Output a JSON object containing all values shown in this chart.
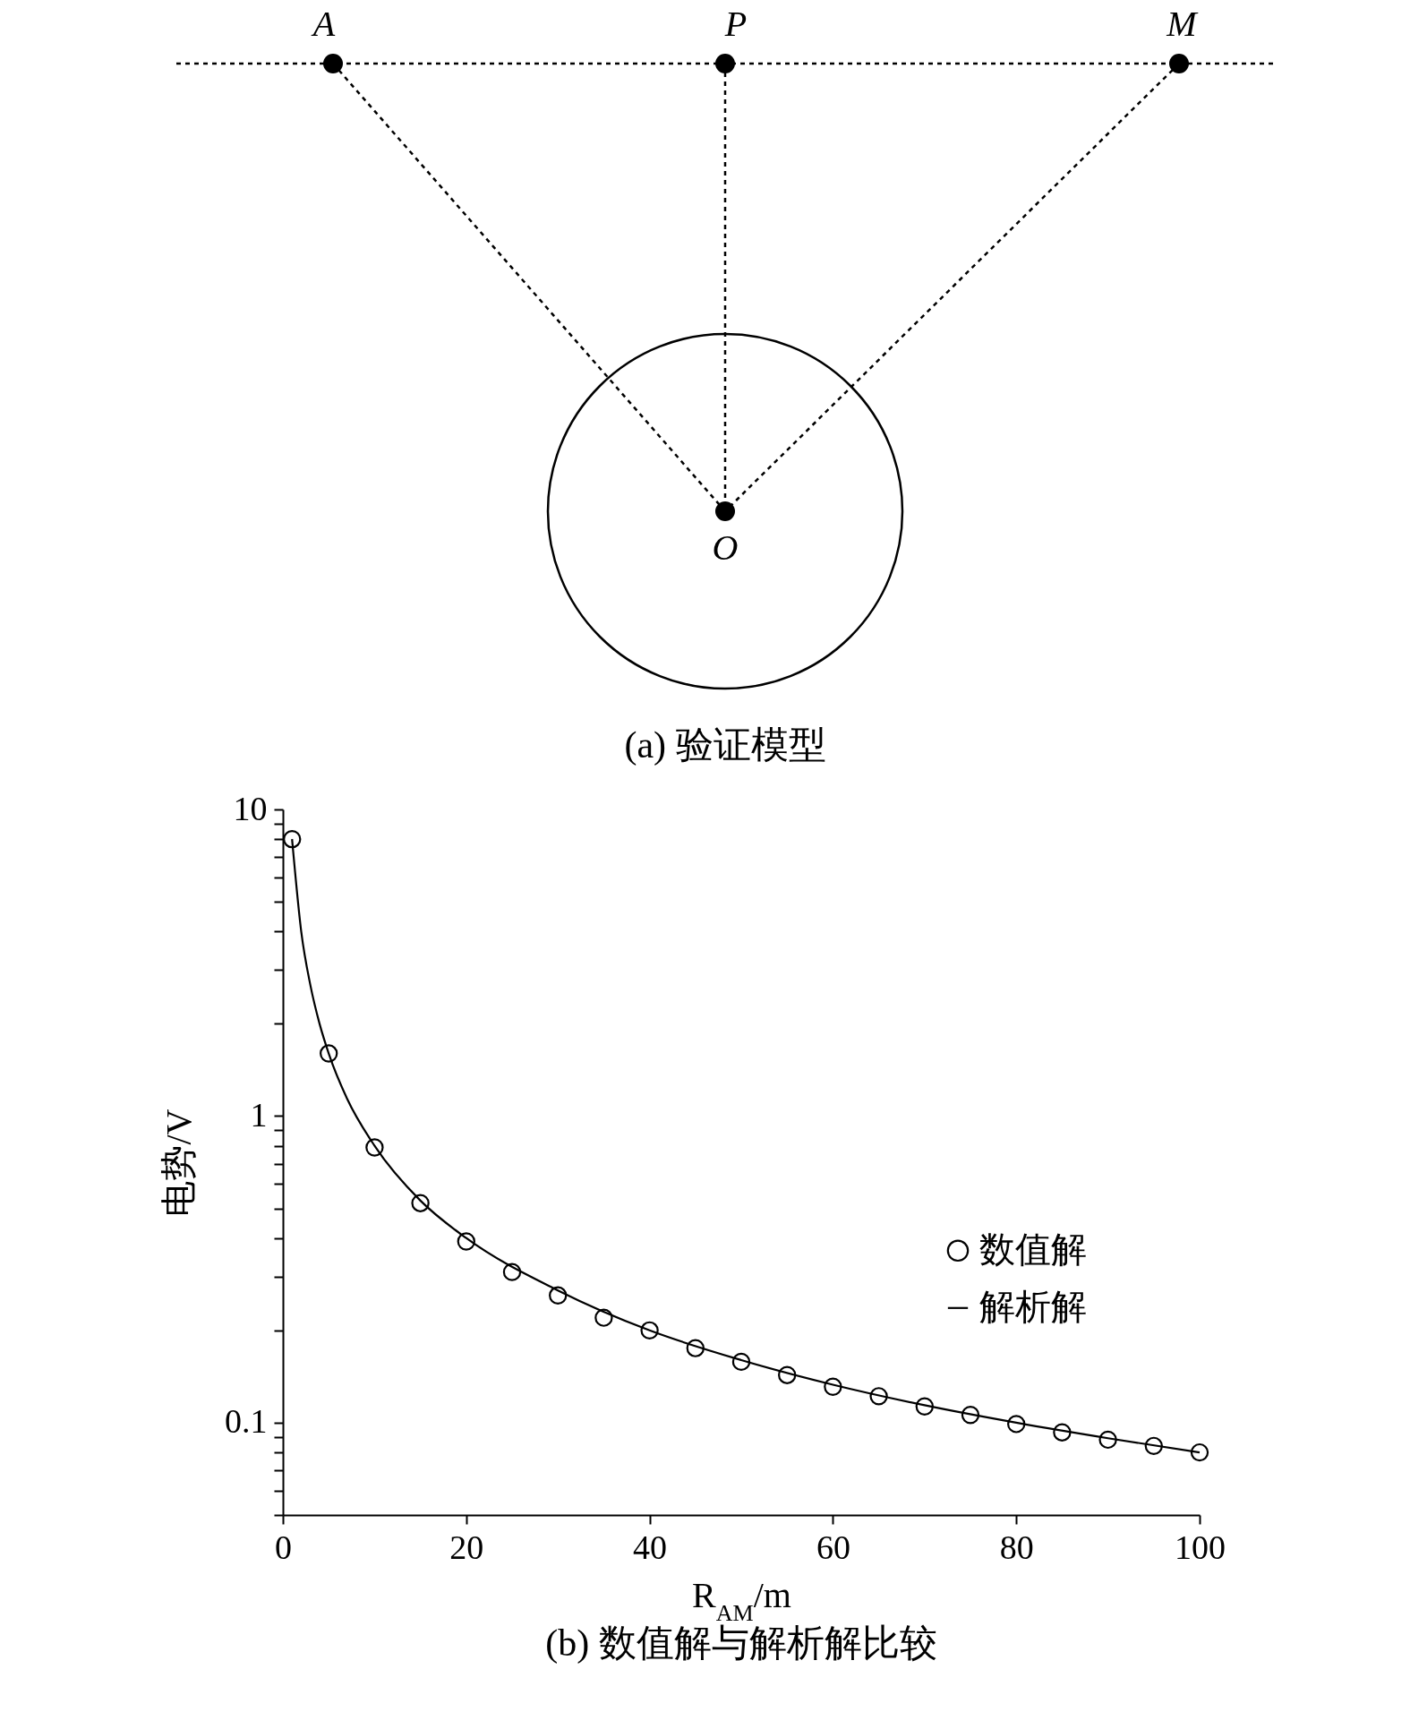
{
  "chart_data": [
    {
      "type": "other",
      "title": "(a) 验证模型",
      "annotations": [
        "A",
        "P",
        "M",
        "O"
      ]
    },
    {
      "type": "line",
      "title": "(b) 数值解与解析解比较",
      "xlabel": "R$_{AM}$/m",
      "ylabel": "电势/V",
      "xlim": [
        0,
        100
      ],
      "xticks": [
        0,
        20,
        40,
        60,
        80,
        100
      ],
      "ylim": [
        0.05,
        10
      ],
      "log": true,
      "yticks": [
        {
          "value": 0.05,
          "label": null
        },
        {
          "value": 0.06,
          "label": null
        },
        {
          "value": 0.07,
          "label": null
        },
        {
          "value": 0.08,
          "label": null
        },
        {
          "value": 0.09,
          "label": null
        },
        0.1,
        {
          "value": 0.2,
          "label": null
        },
        {
          "value": 0.3,
          "label": null
        },
        {
          "value": 0.4,
          "label": null
        },
        {
          "value": 0.5,
          "label": null
        },
        {
          "value": 0.6,
          "label": null
        },
        {
          "value": 0.7,
          "label": null
        },
        {
          "value": 0.8,
          "label": null
        },
        {
          "value": 0.9,
          "label": null
        },
        1,
        {
          "value": 2,
          "label": null
        },
        {
          "value": 3,
          "label": null
        },
        {
          "value": 4,
          "label": null
        },
        {
          "value": 5,
          "label": null
        },
        {
          "value": 6,
          "label": null
        },
        {
          "value": 7,
          "label": null
        },
        {
          "value": 8,
          "label": null
        },
        {
          "value": 9,
          "label": null
        },
        10
      ],
      "grid": false,
      "legend": "right",
      "series": [
        {
          "name": "数值解",
          "type": "scatter",
          "color": "#000000",
          "x": [
            1,
            5,
            10,
            15,
            20,
            25,
            30,
            35,
            40,
            45,
            50,
            55,
            60,
            65,
            70,
            75,
            80,
            85,
            90,
            95,
            100
          ],
          "values": [
            8,
            1.6,
            0.79,
            0.52,
            0.39,
            0.31,
            0.26,
            0.22,
            0.2,
            0.175,
            0.158,
            0.143,
            0.131,
            0.122,
            0.113,
            0.106,
            0.099,
            0.093,
            0.088,
            0.084,
            0.08
          ]
        },
        {
          "name": "解析解",
          "type": "line",
          "color": "#000000",
          "x": [
            1,
            2,
            3,
            4,
            5,
            7,
            10,
            15,
            20,
            30,
            40,
            50,
            60,
            70,
            80,
            90,
            100
          ],
          "values": [
            8,
            4,
            2.67,
            2,
            1.6,
            1.14,
            0.8,
            0.53,
            0.4,
            0.27,
            0.2,
            0.16,
            0.133,
            0.114,
            0.1,
            0.089,
            0.08
          ]
        }
      ]
    }
  ]
}
